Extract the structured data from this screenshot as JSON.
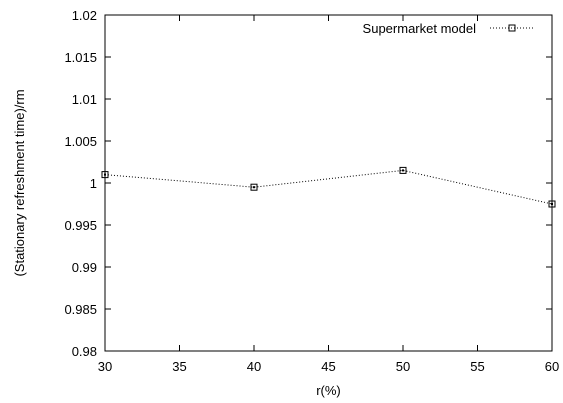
{
  "chart_data": {
    "type": "line",
    "title": "",
    "xlabel": "r(%)",
    "ylabel": "(Stationary refreshment time)/rm",
    "xlim": [
      30,
      60
    ],
    "ylim": [
      0.98,
      1.02
    ],
    "x_ticks": [
      30,
      35,
      40,
      45,
      50,
      55,
      60
    ],
    "x_tick_labels": [
      "30",
      "35",
      "40",
      "45",
      "50",
      "55",
      "60"
    ],
    "y_ticks": [
      0.98,
      0.985,
      0.99,
      0.995,
      1,
      1.005,
      1.01,
      1.015,
      1.02
    ],
    "y_tick_labels": [
      "0.98",
      "0.985",
      "0.99",
      "0.995",
      "1",
      "1.005",
      "1.01",
      "1.015",
      "1.02"
    ],
    "grid": false,
    "legend_position": "top-right",
    "series": [
      {
        "name": "Supermarket model",
        "marker": "square",
        "line_style": "dotted",
        "color": "#000000",
        "x": [
          30,
          40,
          50,
          60
        ],
        "y": [
          1.001,
          0.9995,
          1.0015,
          0.9975
        ]
      }
    ]
  }
}
